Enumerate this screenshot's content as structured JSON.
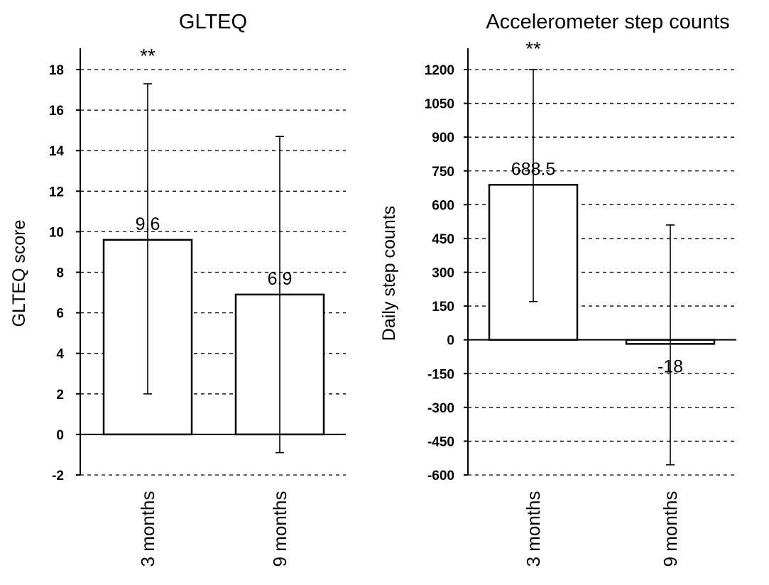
{
  "chart_data": [
    {
      "type": "bar",
      "title": "GLTEQ",
      "ylabel": "GLTEQ score",
      "xlabel": "",
      "categories": [
        "3 months",
        "9 months"
      ],
      "values": [
        9.6,
        6.9
      ],
      "value_labels": [
        "9.6",
        "6.9"
      ],
      "error_low": [
        2.0,
        -0.9
      ],
      "error_high": [
        17.3,
        14.7
      ],
      "significance": [
        "**",
        ""
      ],
      "ylim": [
        -2,
        18
      ],
      "yticks": [
        18,
        16,
        14,
        12,
        10,
        8,
        6,
        4,
        2,
        0,
        -2
      ],
      "ytick_labels": [
        "18",
        "16",
        "14",
        "12",
        "10",
        "8",
        "6",
        "4",
        "2",
        "0",
        "-2"
      ],
      "grid": true,
      "colors": {
        "bar_fill": "#ffffff",
        "bar_edge": "#000000"
      }
    },
    {
      "type": "bar",
      "title": "Accelerometer step counts",
      "ylabel": "Daily step counts",
      "xlabel": "",
      "categories": [
        "3 months",
        "9 months"
      ],
      "values": [
        688.5,
        -18
      ],
      "value_labels": [
        "688.5",
        "-18"
      ],
      "error_low": [
        170,
        -555
      ],
      "error_high": [
        1200,
        510
      ],
      "significance": [
        "**",
        ""
      ],
      "ylim": [
        -600,
        1200
      ],
      "yticks": [
        1200,
        1050,
        900,
        750,
        600,
        450,
        300,
        150,
        0,
        -150,
        -300,
        -450,
        -600
      ],
      "ytick_labels": [
        "1200",
        "1050",
        "900",
        "750",
        "600",
        "450",
        "300",
        "150",
        "0",
        "-150",
        "-300",
        "-450",
        "-600"
      ],
      "grid": true,
      "colors": {
        "bar_fill": "#ffffff",
        "bar_edge": "#000000"
      }
    }
  ]
}
